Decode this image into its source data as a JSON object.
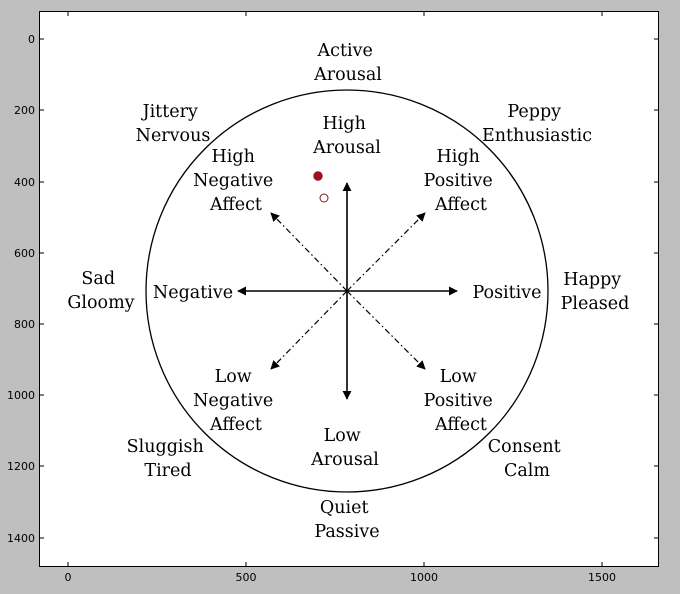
{
  "axes": {
    "x_ticks": [
      "0",
      "500",
      "1000",
      "1500"
    ],
    "y_ticks": [
      "0",
      "200",
      "400",
      "600",
      "800",
      "1000",
      "1200",
      "1400"
    ]
  },
  "labels": {
    "active_arousal": [
      "Active",
      "Arousal"
    ],
    "high_arousal": [
      "High",
      "Arousal"
    ],
    "jittery_nervous": [
      "Jittery",
      "Nervous"
    ],
    "peppy_enthusiastic": [
      "Peppy",
      "Enthusiastic"
    ],
    "high_negative_affect": [
      "High",
      "Negative",
      "Affect"
    ],
    "high_positive_affect": [
      "High",
      "Positive",
      "Affect"
    ],
    "sad_gloomy": [
      "Sad",
      "Gloomy"
    ],
    "negative": [
      "Negative"
    ],
    "positive": [
      "Positive"
    ],
    "happy_pleased": [
      "Happy",
      "Pleased"
    ],
    "low_negative_affect": [
      "Low",
      "Negative",
      "Affect"
    ],
    "low_positive_affect": [
      "Low",
      "Positive",
      "Affect"
    ],
    "low_arousal": [
      "Low",
      "Arousal"
    ],
    "sluggish_tired": [
      "Sluggish",
      "Tired"
    ],
    "consent_calm": [
      "Consent",
      "Calm"
    ],
    "quiet_passive": [
      "Quiet",
      "Passive"
    ]
  },
  "markers": {
    "filled_color": "#a01020",
    "hollow_color": "#ffffff"
  }
}
